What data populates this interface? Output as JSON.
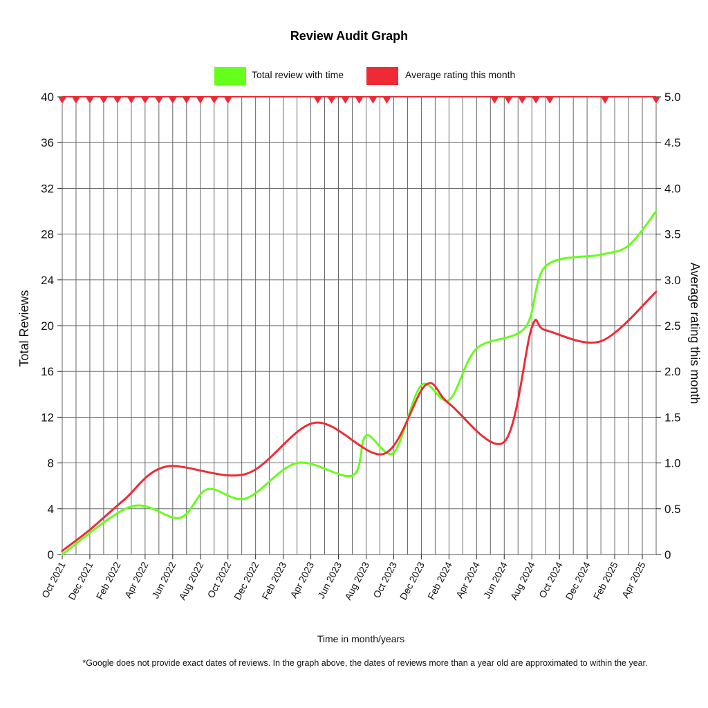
{
  "chart_data": {
    "type": "line",
    "title": "Review Audit Graph",
    "xlabel": "Time in month/years",
    "ylabel": "Total Reviews",
    "y2label": "Average rating this month",
    "ylim": [
      0,
      40
    ],
    "y2lim": [
      0,
      5.0
    ],
    "yticks": [
      "0",
      "4",
      "8",
      "12",
      "16",
      "20",
      "24",
      "28",
      "32",
      "36",
      "40"
    ],
    "y2ticks": [
      "0",
      "0.5",
      "1.0",
      "1.5",
      "2.0",
      "2.5",
      "3.0",
      "3.5",
      "4.0",
      "4.5",
      "5.0"
    ],
    "x_tick_labels": [
      "Oct 2021",
      "Dec 2021",
      "Feb 2022",
      "Apr 2022",
      "Jun 2022",
      "Aug 2022",
      "Oct 2022",
      "Dec 2022",
      "Feb 2023",
      "Apr 2023",
      "Jun 2023",
      "Aug 2023",
      "Oct 2023",
      "Dec 2023",
      "Feb 2024",
      "Apr 2024",
      "Jun 2024",
      "Aug 2024",
      "Oct 2024",
      "Dec 2024",
      "Feb 2025",
      "Apr 2025"
    ],
    "x_range_months": [
      0,
      43
    ],
    "grid": true,
    "legend_position": "top-center",
    "series": [
      {
        "name": "Total review with time",
        "axis": "left",
        "color": "#66ff19",
        "points": [
          [
            0,
            0
          ],
          [
            5,
            4.2
          ],
          [
            8.5,
            3.2
          ],
          [
            10.5,
            5.7
          ],
          [
            13.3,
            4.9
          ],
          [
            17,
            8
          ],
          [
            21,
            6.9
          ],
          [
            22,
            10.4
          ],
          [
            24,
            8.9
          ],
          [
            26,
            14.8
          ],
          [
            28,
            13.5
          ],
          [
            30,
            18
          ],
          [
            33.5,
            19.8
          ],
          [
            35,
            25.2
          ],
          [
            39,
            26.2
          ],
          [
            41,
            27
          ],
          [
            43,
            30
          ]
        ]
      },
      {
        "name": "Average rating this month",
        "axis": "right",
        "color": "#ee2b35",
        "points": [
          [
            0,
            0.04
          ],
          [
            2,
            0.27
          ],
          [
            4.5,
            0.6
          ],
          [
            7.5,
            0.96
          ],
          [
            13.3,
            0.88
          ],
          [
            18.3,
            1.44
          ],
          [
            23.3,
            1.1
          ],
          [
            26.3,
            1.85
          ],
          [
            28,
            1.65
          ],
          [
            32,
            1.23
          ],
          [
            34,
            2.48
          ],
          [
            35,
            2.45
          ],
          [
            39,
            2.33
          ],
          [
            43,
            2.87
          ]
        ]
      }
    ],
    "rating_markers_months": [
      0,
      1,
      2,
      3,
      4,
      5,
      6,
      7,
      8,
      9,
      10,
      11,
      12,
      18.5,
      19.5,
      20.5,
      21.5,
      22.5,
      23.5,
      31.3,
      32.3,
      33.3,
      34.3,
      35.3,
      39.3,
      43
    ],
    "marker_color": "#ee2b35",
    "footnote": "*Google does not provide exact dates of reviews. In the graph above, the dates of reviews more than a year old are approximated to within the year."
  }
}
